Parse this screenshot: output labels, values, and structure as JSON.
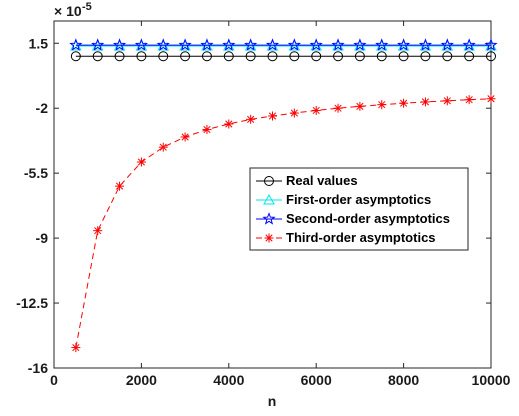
{
  "chart_data": {
    "type": "line",
    "xlabel": "n",
    "ylabel": "",
    "title": "",
    "xlim": [
      0,
      10000
    ],
    "ylim": [
      -16,
      2.7
    ],
    "x_ticks": [
      0,
      2000,
      4000,
      6000,
      8000,
      10000
    ],
    "x_tick_labels": [
      "0",
      "2000",
      "4000",
      "6000",
      "8000",
      "10000"
    ],
    "y_ticks": [
      -16,
      -12.5,
      -9,
      -5.5,
      -2,
      1.5
    ],
    "y_tick_labels": [
      "-16",
      "-12.5",
      "-9",
      "-5.5",
      "-2",
      "1.5"
    ],
    "y_multiplier": {
      "base": "× 10",
      "exponent": "-5"
    },
    "grid": false,
    "legend_position": "center-right",
    "x": [
      500,
      1000,
      1500,
      2000,
      2500,
      3000,
      3500,
      4000,
      4500,
      5000,
      5500,
      6000,
      6500,
      7000,
      7500,
      8000,
      8500,
      9000,
      9500,
      10000
    ],
    "series": [
      {
        "name": "Real values",
        "color": "#000000",
        "marker": "circle",
        "line_style": "solid",
        "values": [
          0.8,
          0.8,
          0.8,
          0.8,
          0.8,
          0.8,
          0.8,
          0.8,
          0.8,
          0.8,
          0.8,
          0.8,
          0.8,
          0.8,
          0.8,
          0.8,
          0.8,
          0.8,
          0.8,
          0.8
        ]
      },
      {
        "name": "First-order asymptotics",
        "color": "#00e5ee",
        "marker": "triangle",
        "line_style": "solid",
        "values": [
          1.35,
          1.35,
          1.35,
          1.35,
          1.35,
          1.35,
          1.35,
          1.35,
          1.35,
          1.35,
          1.35,
          1.35,
          1.35,
          1.35,
          1.35,
          1.35,
          1.35,
          1.35,
          1.35,
          1.35
        ]
      },
      {
        "name": "Second-order asymptotics",
        "color": "#0000ff",
        "marker": "star",
        "line_style": "solid",
        "values": [
          1.4,
          1.4,
          1.4,
          1.4,
          1.4,
          1.4,
          1.4,
          1.4,
          1.4,
          1.4,
          1.4,
          1.4,
          1.4,
          1.4,
          1.4,
          1.4,
          1.4,
          1.4,
          1.4,
          1.4
        ]
      },
      {
        "name": "Third-order asymptotics",
        "color": "#ff0000",
        "marker": "asterisk",
        "line_style": "dashed",
        "values": [
          -14.9,
          -8.6,
          -6.2,
          -4.9,
          -4.1,
          -3.55,
          -3.15,
          -2.85,
          -2.6,
          -2.42,
          -2.26,
          -2.12,
          -2.0,
          -1.9,
          -1.81,
          -1.73,
          -1.66,
          -1.6,
          -1.54,
          -1.49
        ]
      }
    ]
  }
}
